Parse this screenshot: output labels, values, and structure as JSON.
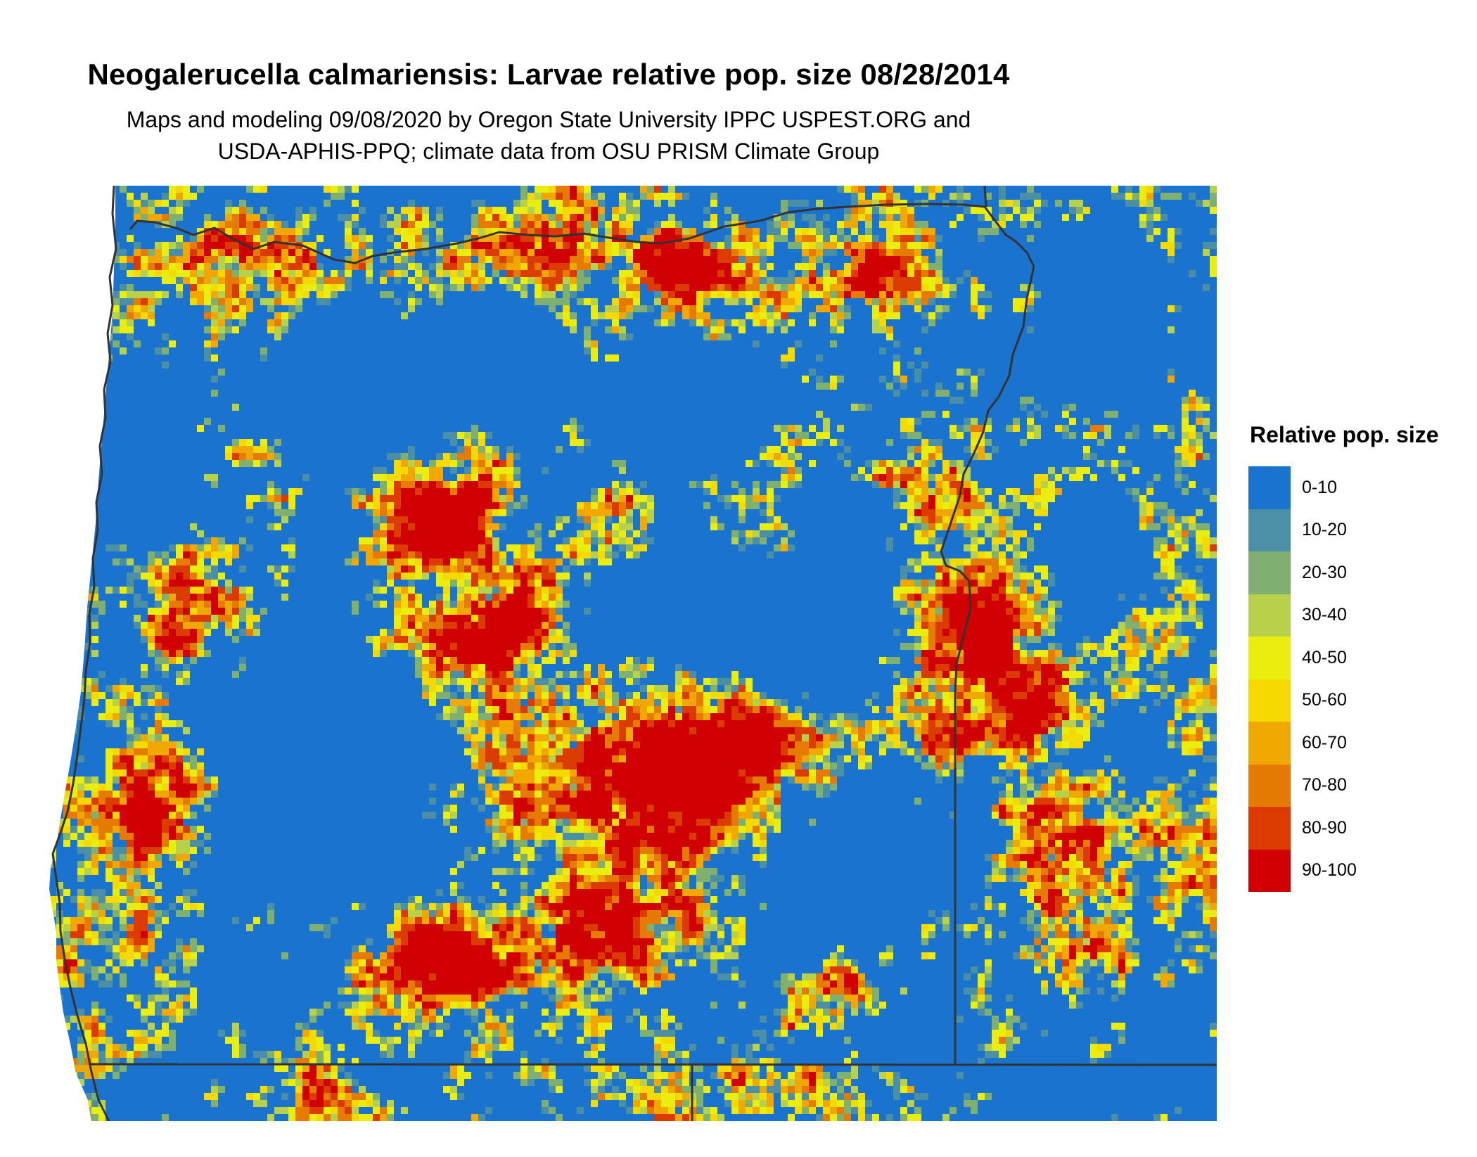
{
  "title": "Neogalerucella calmariensis: Larvae relative pop. size 08/28/2014",
  "subtitle_line1": "Maps and modeling 09/08/2020 by Oregon State University IPPC USPEST.ORG and",
  "subtitle_line2": "USDA-APHIS-PPQ; climate data from OSU PRISM Climate Group",
  "legend": {
    "title": "Relative pop. size",
    "items": [
      {
        "label": "0-10",
        "color": "#1a73cc"
      },
      {
        "label": "10-20",
        "color": "#4a8fa6"
      },
      {
        "label": "20-30",
        "color": "#7fb06f"
      },
      {
        "label": "30-40",
        "color": "#b7d24a"
      },
      {
        "label": "40-50",
        "color": "#eaee0f"
      },
      {
        "label": "50-60",
        "color": "#f5da00"
      },
      {
        "label": "60-70",
        "color": "#f0a800"
      },
      {
        "label": "70-80",
        "color": "#e57b00"
      },
      {
        "label": "80-90",
        "color": "#dc3b00"
      },
      {
        "label": "90-100",
        "color": "#d00000"
      }
    ]
  },
  "map": {
    "region": "Oregon",
    "raster": "relative population size classes",
    "boundary_line_color": "#333333"
  }
}
